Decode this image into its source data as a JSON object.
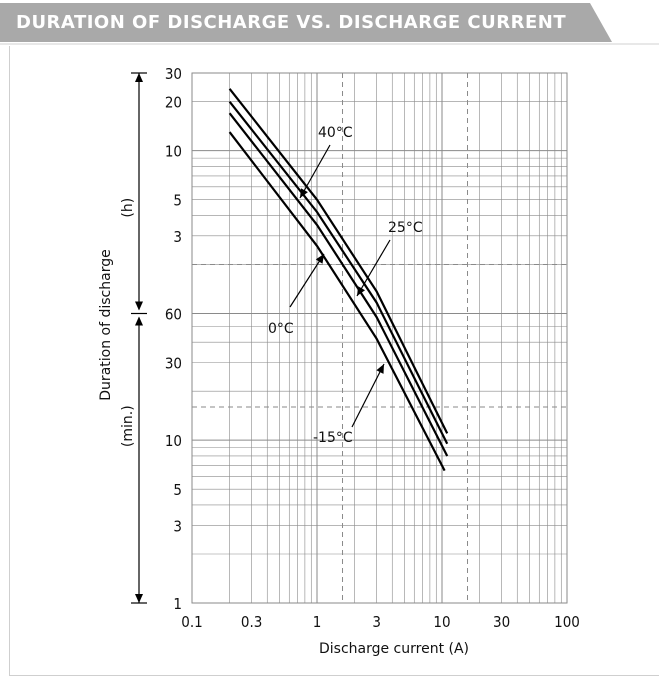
{
  "header": {
    "title": "DURATION OF DISCHARGE VS. DISCHARGE CURRENT"
  },
  "colors": {
    "banner": "#a9a9a9",
    "grid": "#8a8a8a",
    "curve": "#000000"
  },
  "chart_data": {
    "type": "line",
    "title": "DURATION OF DISCHARGE VS. DISCHARGE CURRENT",
    "xlabel": "Discharge current (A)",
    "ylabel": "Duration of discharge",
    "y_units": {
      "upper": "(h)",
      "lower": "(min.)"
    },
    "x_scale": "log",
    "y_scale": "log",
    "xlim": [
      0.1,
      100
    ],
    "x_ticks": [
      "0.1",
      "0.3",
      "1",
      "3",
      "10",
      "30",
      "100"
    ],
    "y_ticks_hours": [
      "30",
      "20",
      "10",
      "5",
      "3"
    ],
    "y_ticks_minutes": [
      "60",
      "30",
      "10",
      "5",
      "3",
      "1"
    ],
    "series": [
      {
        "name": "40°C",
        "points": [
          [
            0.2,
            "24h"
          ],
          [
            1,
            "5h"
          ],
          [
            3,
            "82min"
          ],
          [
            11,
            "11min"
          ]
        ]
      },
      {
        "name": "25°C",
        "points": [
          [
            0.2,
            "20h"
          ],
          [
            1,
            "4.2h"
          ],
          [
            3,
            "70min"
          ],
          [
            11,
            "9.5min"
          ]
        ]
      },
      {
        "name": "0°C",
        "points": [
          [
            0.2,
            "17h"
          ],
          [
            1,
            "3.5h"
          ],
          [
            3,
            "57min"
          ],
          [
            11,
            "8min"
          ]
        ]
      },
      {
        "name": "-15°C",
        "points": [
          [
            0.2,
            "13h"
          ],
          [
            1,
            "2.6h"
          ],
          [
            3,
            "42min"
          ],
          [
            10.5,
            "6.5min"
          ]
        ]
      }
    ],
    "legend": "inline labels with arrows",
    "grid": true
  }
}
